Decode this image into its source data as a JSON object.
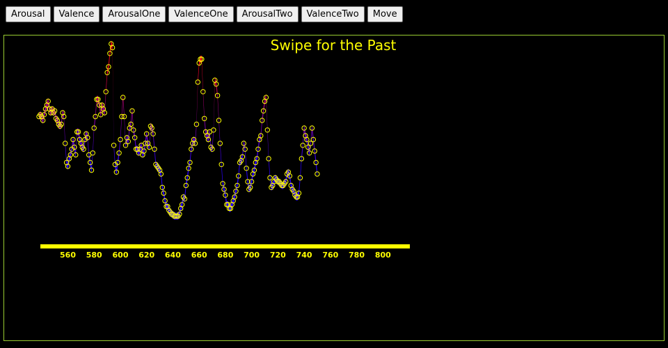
{
  "toolbar": {
    "buttons": [
      {
        "label": "Arousal"
      },
      {
        "label": "Valence"
      },
      {
        "label": "ArousalOne"
      },
      {
        "label": "ValenceOne"
      },
      {
        "label": "ArousalTwo"
      },
      {
        "label": "ValenceTwo"
      },
      {
        "label": "Move"
      }
    ]
  },
  "colors": {
    "panel_border": "#9acd32",
    "axis": "#ffff00",
    "points_stroke": "#ffff00",
    "gradient_high": "#e8001c",
    "gradient_low": "#2a00ff",
    "background": "#000000"
  },
  "chart_data": {
    "type": "area",
    "title": "Swipe for the Past",
    "xlabel": "",
    "ylabel": "",
    "xlim": [
      538,
      820
    ],
    "ylim": [
      0,
      1
    ],
    "grid": false,
    "x_ticks": [
      560,
      580,
      600,
      620,
      640,
      660,
      680,
      700,
      720,
      740,
      760,
      780,
      800
    ],
    "series": [
      {
        "values": [
          [
            538,
            0.62
          ],
          [
            539,
            0.63
          ],
          [
            540,
            0.62
          ],
          [
            541,
            0.6
          ],
          [
            542,
            0.63
          ],
          [
            543,
            0.66
          ],
          [
            544,
            0.68
          ],
          [
            545,
            0.7
          ],
          [
            546,
            0.66
          ],
          [
            547,
            0.64
          ],
          [
            548,
            0.66
          ],
          [
            549,
            0.64
          ],
          [
            550,
            0.65
          ],
          [
            551,
            0.61
          ],
          [
            552,
            0.6
          ],
          [
            553,
            0.58
          ],
          [
            554,
            0.57
          ],
          [
            555,
            0.58
          ],
          [
            556,
            0.64
          ],
          [
            557,
            0.62
          ],
          [
            558,
            0.48
          ],
          [
            559,
            0.38
          ],
          [
            560,
            0.36
          ],
          [
            561,
            0.4
          ],
          [
            562,
            0.42
          ],
          [
            563,
            0.45
          ],
          [
            564,
            0.5
          ],
          [
            565,
            0.46
          ],
          [
            566,
            0.42
          ],
          [
            567,
            0.54
          ],
          [
            568,
            0.54
          ],
          [
            569,
            0.5
          ],
          [
            570,
            0.48
          ],
          [
            571,
            0.46
          ],
          [
            572,
            0.45
          ],
          [
            573,
            0.5
          ],
          [
            574,
            0.53
          ],
          [
            575,
            0.51
          ],
          [
            576,
            0.42
          ],
          [
            577,
            0.38
          ],
          [
            578,
            0.34
          ],
          [
            579,
            0.43
          ],
          [
            580,
            0.56
          ],
          [
            581,
            0.62
          ],
          [
            582,
            0.71
          ],
          [
            583,
            0.71
          ],
          [
            584,
            0.68
          ],
          [
            585,
            0.63
          ],
          [
            586,
            0.68
          ],
          [
            587,
            0.66
          ],
          [
            588,
            0.64
          ],
          [
            589,
            0.75
          ],
          [
            590,
            0.85
          ],
          [
            591,
            0.88
          ],
          [
            592,
            0.95
          ],
          [
            593,
            1.0
          ],
          [
            594,
            0.98
          ],
          [
            595,
            0.47
          ],
          [
            596,
            0.37
          ],
          [
            597,
            0.33
          ],
          [
            598,
            0.38
          ],
          [
            599,
            0.43
          ],
          [
            600,
            0.5
          ],
          [
            601,
            0.62
          ],
          [
            602,
            0.72
          ],
          [
            603,
            0.62
          ],
          [
            604,
            0.47
          ],
          [
            605,
            0.51
          ],
          [
            606,
            0.49
          ],
          [
            607,
            0.56
          ],
          [
            608,
            0.58
          ],
          [
            609,
            0.65
          ],
          [
            610,
            0.55
          ],
          [
            611,
            0.51
          ],
          [
            612,
            0.45
          ],
          [
            613,
            0.45
          ],
          [
            614,
            0.43
          ],
          [
            615,
            0.45
          ],
          [
            616,
            0.47
          ],
          [
            617,
            0.42
          ],
          [
            618,
            0.44
          ],
          [
            619,
            0.48
          ],
          [
            620,
            0.53
          ],
          [
            621,
            0.48
          ],
          [
            622,
            0.46
          ],
          [
            623,
            0.57
          ],
          [
            624,
            0.56
          ],
          [
            625,
            0.53
          ],
          [
            626,
            0.45
          ],
          [
            627,
            0.37
          ],
          [
            628,
            0.36
          ],
          [
            629,
            0.35
          ],
          [
            630,
            0.34
          ],
          [
            631,
            0.32
          ],
          [
            632,
            0.25
          ],
          [
            633,
            0.22
          ],
          [
            634,
            0.18
          ],
          [
            635,
            0.15
          ],
          [
            636,
            0.15
          ],
          [
            637,
            0.13
          ],
          [
            638,
            0.12
          ],
          [
            639,
            0.11
          ],
          [
            640,
            0.11
          ],
          [
            641,
            0.1
          ],
          [
            642,
            0.1
          ],
          [
            643,
            0.1
          ],
          [
            644,
            0.1
          ],
          [
            645,
            0.11
          ],
          [
            646,
            0.14
          ],
          [
            647,
            0.16
          ],
          [
            648,
            0.2
          ],
          [
            649,
            0.19
          ],
          [
            650,
            0.26
          ],
          [
            651,
            0.3
          ],
          [
            652,
            0.35
          ],
          [
            653,
            0.38
          ],
          [
            654,
            0.45
          ],
          [
            655,
            0.48
          ],
          [
            656,
            0.5
          ],
          [
            657,
            0.48
          ],
          [
            658,
            0.58
          ],
          [
            659,
            0.8
          ],
          [
            660,
            0.9
          ],
          [
            661,
            0.92
          ],
          [
            662,
            0.92
          ],
          [
            663,
            0.75
          ],
          [
            664,
            0.61
          ],
          [
            665,
            0.54
          ],
          [
            666,
            0.52
          ],
          [
            667,
            0.5
          ],
          [
            668,
            0.54
          ],
          [
            669,
            0.46
          ],
          [
            670,
            0.45
          ],
          [
            671,
            0.55
          ],
          [
            672,
            0.81
          ],
          [
            673,
            0.79
          ],
          [
            674,
            0.73
          ],
          [
            675,
            0.6
          ],
          [
            676,
            0.48
          ],
          [
            677,
            0.37
          ],
          [
            678,
            0.27
          ],
          [
            679,
            0.24
          ],
          [
            680,
            0.21
          ],
          [
            681,
            0.16
          ],
          [
            682,
            0.16
          ],
          [
            683,
            0.14
          ],
          [
            684,
            0.14
          ],
          [
            685,
            0.16
          ],
          [
            686,
            0.18
          ],
          [
            687,
            0.2
          ],
          [
            688,
            0.23
          ],
          [
            689,
            0.26
          ],
          [
            690,
            0.31
          ],
          [
            691,
            0.38
          ],
          [
            692,
            0.39
          ],
          [
            693,
            0.41
          ],
          [
            694,
            0.48
          ],
          [
            695,
            0.45
          ],
          [
            696,
            0.35
          ],
          [
            697,
            0.28
          ],
          [
            698,
            0.24
          ],
          [
            699,
            0.25
          ],
          [
            700,
            0.28
          ],
          [
            701,
            0.32
          ],
          [
            702,
            0.34
          ],
          [
            703,
            0.38
          ],
          [
            704,
            0.4
          ],
          [
            705,
            0.45
          ],
          [
            706,
            0.5
          ],
          [
            707,
            0.52
          ],
          [
            708,
            0.6
          ],
          [
            709,
            0.65
          ],
          [
            710,
            0.7
          ],
          [
            711,
            0.72
          ],
          [
            712,
            0.55
          ],
          [
            713,
            0.4
          ],
          [
            714,
            0.3
          ],
          [
            715,
            0.25
          ],
          [
            716,
            0.26
          ],
          [
            717,
            0.28
          ],
          [
            718,
            0.3
          ],
          [
            719,
            0.29
          ],
          [
            720,
            0.28
          ],
          [
            721,
            0.28
          ],
          [
            722,
            0.27
          ],
          [
            723,
            0.26
          ],
          [
            724,
            0.26
          ],
          [
            725,
            0.27
          ],
          [
            726,
            0.28
          ],
          [
            727,
            0.32
          ],
          [
            728,
            0.33
          ],
          [
            729,
            0.31
          ],
          [
            730,
            0.26
          ],
          [
            731,
            0.24
          ],
          [
            732,
            0.23
          ],
          [
            733,
            0.21
          ],
          [
            734,
            0.2
          ],
          [
            735,
            0.2
          ],
          [
            736,
            0.22
          ],
          [
            737,
            0.3
          ],
          [
            738,
            0.4
          ],
          [
            739,
            0.47
          ],
          [
            740,
            0.56
          ],
          [
            741,
            0.52
          ],
          [
            742,
            0.5
          ],
          [
            743,
            0.46
          ],
          [
            744,
            0.43
          ],
          [
            745,
            0.48
          ],
          [
            746,
            0.56
          ],
          [
            747,
            0.5
          ],
          [
            748,
            0.44
          ],
          [
            749,
            0.38
          ],
          [
            750,
            0.32
          ]
        ]
      }
    ]
  }
}
